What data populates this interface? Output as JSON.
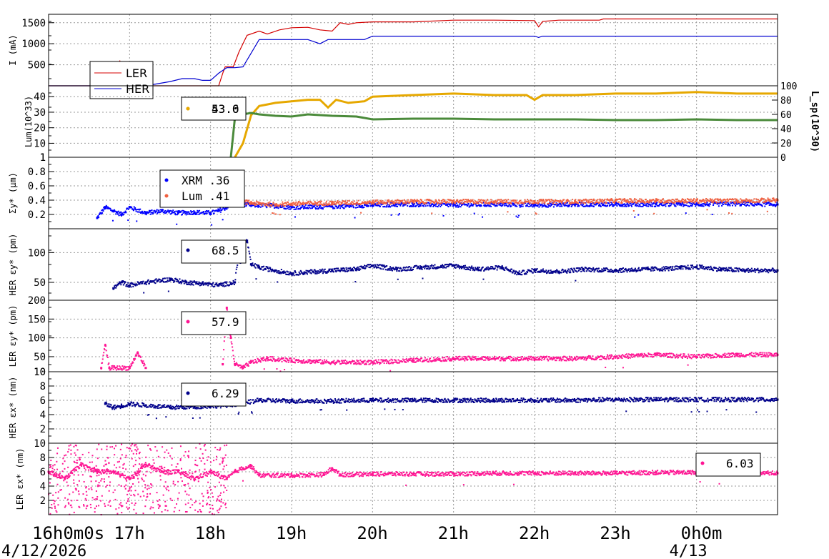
{
  "chart_data": [
    {
      "type": "line",
      "ylabel": "I (mA)",
      "ylim": [
        0,
        1700
      ],
      "yticks": [
        500,
        1000,
        1500
      ],
      "series": [
        {
          "name": "LER",
          "color": "#d40000",
          "x": [
            16.0,
            16.78,
            16.86,
            16.88,
            16.9,
            17.0,
            17.5,
            18.0,
            18.1,
            18.15,
            18.18,
            18.22,
            18.28,
            18.35,
            18.45,
            18.6,
            18.7,
            18.85,
            19.0,
            19.2,
            19.35,
            19.5,
            19.6,
            19.7,
            19.8,
            20.0,
            20.5,
            21.0,
            21.5,
            22.0,
            22.05,
            22.1,
            22.3,
            22.8,
            22.85,
            23.5,
            24.0,
            24.5,
            25.0
          ],
          "y": [
            0,
            0,
            450,
            600,
            0,
            0,
            0,
            0,
            0,
            300,
            450,
            450,
            450,
            800,
            1200,
            1300,
            1230,
            1330,
            1380,
            1390,
            1330,
            1300,
            1500,
            1460,
            1500,
            1520,
            1520,
            1560,
            1560,
            1550,
            1400,
            1530,
            1560,
            1560,
            1590,
            1590,
            1590,
            1590,
            1590
          ]
        },
        {
          "name": "HER",
          "color": "#0000d0",
          "x": [
            16.0,
            16.65,
            16.8,
            16.9,
            17.0,
            17.2,
            17.5,
            17.65,
            17.8,
            17.9,
            18.0,
            18.1,
            18.2,
            18.3,
            18.4,
            18.6,
            19.0,
            19.2,
            19.35,
            19.45,
            19.55,
            19.6,
            19.9,
            20.0,
            21.0,
            22.0,
            22.05,
            22.1,
            23.0,
            24.0,
            25.0
          ],
          "y": [
            0,
            0,
            30,
            0,
            0,
            0,
            100,
            170,
            170,
            130,
            130,
            300,
            430,
            430,
            450,
            1100,
            1100,
            1100,
            1000,
            1100,
            1100,
            1100,
            1100,
            1180,
            1180,
            1180,
            1150,
            1180,
            1180,
            1180,
            1180
          ]
        }
      ],
      "legend": {
        "labels": [
          "LER",
          "HER"
        ],
        "placement": "left"
      }
    },
    {
      "type": "line",
      "ylabel": "Lum(10^33)",
      "y2label": "L_sp(10^30)",
      "ylim": [
        1,
        47
      ],
      "yticks": [
        1,
        10,
        20,
        30,
        40
      ],
      "y2lim": [
        0,
        100
      ],
      "y2ticks": [
        0,
        20,
        40,
        60,
        80,
        100
      ],
      "series": [
        {
          "name": "",
          "axis": "left",
          "color": "#e6a800",
          "x": [
            18.3,
            18.4,
            18.5,
            18.6,
            18.7,
            18.8,
            19.0,
            19.2,
            19.35,
            19.45,
            19.55,
            19.7,
            19.9,
            20.0,
            20.5,
            21.0,
            21.5,
            21.9,
            22.0,
            22.1,
            22.5,
            23.0,
            23.5,
            24.0,
            24.5,
            25.0
          ],
          "y": [
            1,
            10,
            28,
            34,
            35,
            36,
            37,
            38,
            38,
            33,
            38,
            36,
            37,
            40,
            41,
            42,
            41,
            41,
            38,
            41,
            41,
            42,
            42,
            43,
            42,
            42
          ]
        },
        {
          "name": "",
          "axis": "right",
          "color": "#4a8a3a",
          "x": [
            18.25,
            18.3,
            18.35,
            18.4,
            18.5,
            18.6,
            18.8,
            19.0,
            19.2,
            19.5,
            19.8,
            20.0,
            20.5,
            21.0,
            21.5,
            22.0,
            22.5,
            23.0,
            23.5,
            24.0,
            24.5,
            25.0
          ],
          "y": [
            0,
            55,
            62,
            60,
            62,
            60,
            58,
            57,
            60,
            58,
            57,
            53,
            54,
            54,
            53,
            53,
            53,
            52,
            52,
            53,
            52,
            52
          ]
        }
      ],
      "legend": {
        "labels": [
          "53.6",
          "43.0"
        ],
        "placement": "top-left"
      }
    },
    {
      "type": "scatter",
      "ylabel": "Σy* (μm)",
      "ylim": [
        0,
        1.0
      ],
      "yticks": [
        0.2,
        0.4,
        0.6,
        0.8,
        1
      ],
      "series": [
        {
          "name": "XRM",
          "color": "#0000ff",
          "x": [
            16.6,
            16.7,
            16.8,
            16.9,
            17.0,
            17.2,
            17.4,
            17.6,
            17.8,
            18.0,
            18.1,
            18.2,
            18.3,
            18.5,
            18.8,
            19.0,
            19.5,
            20.0,
            20.5,
            21.0,
            21.5,
            22.0,
            22.5,
            23.0,
            23.5,
            24.0,
            24.5,
            25.0
          ],
          "y": [
            0.15,
            0.3,
            0.25,
            0.2,
            0.3,
            0.22,
            0.25,
            0.22,
            0.23,
            0.22,
            0.25,
            0.3,
            0.35,
            0.33,
            0.32,
            0.3,
            0.31,
            0.33,
            0.34,
            0.33,
            0.34,
            0.33,
            0.34,
            0.34,
            0.34,
            0.34,
            0.35,
            0.34
          ]
        },
        {
          "name": "Lum",
          "color": "#f06040",
          "x": [
            18.3,
            18.4,
            18.5,
            18.6,
            18.8,
            19.0,
            19.5,
            20.0,
            20.5,
            21.0,
            21.5,
            22.0,
            22.5,
            23.0,
            23.5,
            24.0,
            24.5,
            25.0
          ],
          "y": [
            0.5,
            0.38,
            0.36,
            0.35,
            0.34,
            0.35,
            0.36,
            0.37,
            0.38,
            0.38,
            0.38,
            0.38,
            0.38,
            0.39,
            0.39,
            0.39,
            0.39,
            0.4
          ]
        }
      ],
      "legend": {
        "labels": [
          "XRM  .36",
          "Lum  .41"
        ],
        "placement": "top-left"
      }
    },
    {
      "type": "scatter",
      "ylabel": "HER εy* (pm)",
      "ylim": [
        20,
        140
      ],
      "yticks": [
        50,
        100
      ],
      "series": [
        {
          "name": "",
          "color": "#00008b",
          "x": [
            16.8,
            16.9,
            17.0,
            17.2,
            17.5,
            17.7,
            17.9,
            18.1,
            18.3,
            18.35,
            18.45,
            18.5,
            18.6,
            18.8,
            19.0,
            19.3,
            19.5,
            19.8,
            20.0,
            20.3,
            20.6,
            21.0,
            21.3,
            21.6,
            21.8,
            22.0,
            22.3,
            22.6,
            23.0,
            23.4,
            23.8,
            24.0,
            24.3,
            24.6,
            25.0
          ],
          "y": [
            40,
            50,
            45,
            50,
            55,
            50,
            48,
            45,
            50,
            100,
            120,
            80,
            75,
            70,
            65,
            68,
            70,
            72,
            78,
            72,
            75,
            78,
            72,
            75,
            65,
            70,
            68,
            72,
            70,
            72,
            74,
            76,
            72,
            70,
            70
          ]
        }
      ],
      "legend": {
        "labels": [
          "68.5"
        ],
        "placement": "top-left"
      }
    },
    {
      "type": "scatter",
      "ylabel": "LER εy* (pm)",
      "ylim": [
        10,
        200
      ],
      "yticks": [
        10,
        50,
        100,
        150,
        200
      ],
      "series": [
        {
          "name": "",
          "color": "#ff1493",
          "x": [
            16.65,
            16.7,
            16.75,
            17.0,
            17.1,
            17.2,
            18.15,
            18.2,
            18.25,
            18.3,
            18.4,
            18.5,
            18.7,
            19.0,
            19.5,
            20.0,
            20.5,
            21.0,
            21.5,
            22.0,
            22.5,
            23.0,
            23.5,
            24.0,
            24.5,
            25.0
          ],
          "y": [
            20,
            80,
            20,
            20,
            60,
            20,
            30,
            180,
            100,
            30,
            20,
            35,
            45,
            40,
            35,
            35,
            40,
            45,
            45,
            45,
            45,
            50,
            55,
            50,
            55,
            55
          ]
        }
      ],
      "legend": {
        "labels": [
          "57.9"
        ],
        "placement": "top-left"
      }
    },
    {
      "type": "scatter",
      "ylabel": "HER εx* (nm)",
      "ylim": [
        0,
        10
      ],
      "yticks": [
        2,
        4,
        6,
        8,
        10
      ],
      "series": [
        {
          "name": "",
          "color": "#00008b",
          "x": [
            16.7,
            16.8,
            16.9,
            17.0,
            17.2,
            17.5,
            17.8,
            18.0,
            18.2,
            18.4,
            18.6,
            19.0,
            19.5,
            20.0,
            20.5,
            21.0,
            21.5,
            22.0,
            22.5,
            23.0,
            23.5,
            24.0,
            24.5,
            25.0
          ],
          "y": [
            5.5,
            5.0,
            5.2,
            5.5,
            5.3,
            5.0,
            5.1,
            5.2,
            5.3,
            5.6,
            6.0,
            5.9,
            5.9,
            6.0,
            6.0,
            6.0,
            6.0,
            6.0,
            6.0,
            6.1,
            6.1,
            6.1,
            6.1,
            6.1
          ]
        }
      ],
      "legend": {
        "labels": [
          "6.29"
        ],
        "placement": "top-left"
      }
    },
    {
      "type": "scatter",
      "ylabel": "LER εx* (nm)",
      "ylim": [
        0,
        10
      ],
      "yticks": [
        2,
        4,
        6,
        8,
        10
      ],
      "series": [
        {
          "name": "",
          "color": "#ff1493",
          "x": [
            16.0,
            16.2,
            16.4,
            16.6,
            16.8,
            17.0,
            17.2,
            17.4,
            17.6,
            17.8,
            18.0,
            18.2,
            18.3,
            18.4,
            18.5,
            18.6,
            19.0,
            19.4,
            19.5,
            19.6,
            20.0,
            20.5,
            21.0,
            21.5,
            22.0,
            22.5,
            23.0,
            23.5,
            24.0,
            24.5,
            25.0
          ],
          "y": [
            6,
            5,
            7,
            6,
            6,
            5,
            7,
            6,
            6,
            5,
            6,
            5,
            6,
            6.5,
            6.8,
            5.5,
            5.5,
            5.6,
            6.5,
            5.6,
            5.7,
            5.7,
            5.7,
            5.8,
            5.8,
            5.8,
            5.8,
            5.9,
            5.9,
            5.9,
            5.8
          ]
        }
      ],
      "legend": {
        "labels": [
          "6.03"
        ],
        "placement": "top-right"
      }
    }
  ],
  "x_axis": {
    "ticks": [
      {
        "x": 16,
        "label": "16h0m0s"
      },
      {
        "x": 17,
        "label": "17h"
      },
      {
        "x": 18,
        "label": "18h"
      },
      {
        "x": 19,
        "label": "19h"
      },
      {
        "x": 20,
        "label": "20h"
      },
      {
        "x": 21,
        "label": "21h"
      },
      {
        "x": 22,
        "label": "22h"
      },
      {
        "x": 23,
        "label": "23h"
      },
      {
        "x": 24,
        "label": "0h0m"
      }
    ],
    "range": [
      16,
      25
    ],
    "dates": [
      {
        "x": 16,
        "label": "4/12/2026"
      },
      {
        "x": 24,
        "label": "4/13"
      }
    ]
  }
}
